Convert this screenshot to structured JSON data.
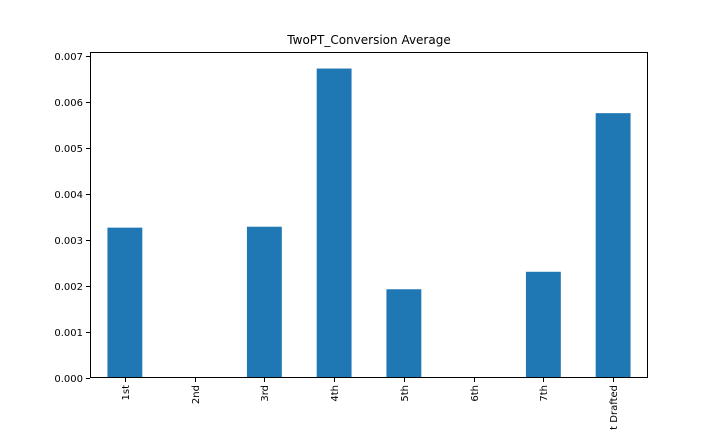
{
  "chart_data": {
    "type": "bar",
    "title": "TwoPT_Conversion Average",
    "xlabel": "",
    "ylabel": "",
    "categories": [
      "1st",
      "2nd",
      "3rd",
      "4th",
      "5th",
      "6th",
      "7th",
      "t Drafted"
    ],
    "values": [
      0.00327,
      0.0,
      0.00329,
      0.00673,
      0.00193,
      0.0,
      0.00231,
      0.00576
    ],
    "ylim": [
      0,
      0.00709
    ],
    "yticks": [
      0.0,
      0.001,
      0.002,
      0.003,
      0.004,
      0.005,
      0.006,
      0.007
    ],
    "ytick_labels": [
      "0.000",
      "0.001",
      "0.002",
      "0.003",
      "0.004",
      "0.005",
      "0.006",
      "0.007"
    ],
    "bar_color": "#1f77b4",
    "grid": false,
    "legend": "none"
  }
}
